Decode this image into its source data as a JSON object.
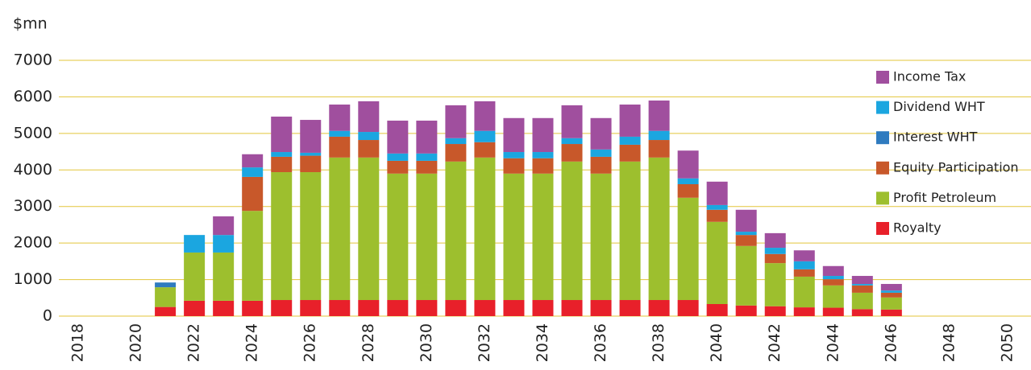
{
  "chart_data": {
    "type": "stacked_bar",
    "y_label": "$mn",
    "categories": [
      "2018",
      null,
      "2020",
      null,
      "2022",
      null,
      "2024",
      null,
      "2026",
      null,
      "2028",
      null,
      "2030",
      null,
      "2032",
      null,
      "2034",
      null,
      "2036",
      null,
      "2038",
      null,
      "2040",
      null,
      "2042",
      null,
      "2044",
      null,
      "2046",
      null,
      "2048",
      null,
      "2050"
    ],
    "series": [
      {
        "name": "Royalty",
        "color": "#e8202a",
        "values": [
          null,
          null,
          null,
          250,
          420,
          420,
          420,
          440,
          440,
          440,
          440,
          440,
          440,
          440,
          440,
          440,
          440,
          440,
          440,
          440,
          440,
          440,
          330,
          290,
          270,
          240,
          230,
          190,
          180,
          null,
          null,
          null,
          null
        ]
      },
      {
        "name": "Profit Petroleum",
        "color": "#9dbf2e",
        "values": [
          null,
          null,
          null,
          540,
          1320,
          1320,
          2460,
          3500,
          3500,
          3900,
          3900,
          3460,
          3460,
          3790,
          3900,
          3460,
          3460,
          3790,
          3460,
          3790,
          3900,
          2800,
          2250,
          1630,
          1180,
          840,
          610,
          450,
          330,
          null,
          null,
          null,
          null
        ]
      },
      {
        "name": "Equity Participation",
        "color": "#c8582a",
        "values": [
          null,
          null,
          null,
          0,
          0,
          0,
          930,
          420,
          450,
          570,
          480,
          350,
          350,
          480,
          420,
          420,
          420,
          480,
          460,
          460,
          480,
          370,
          330,
          300,
          250,
          200,
          170,
          200,
          130,
          null,
          null,
          null,
          null
        ]
      },
      {
        "name": "Interest WHT",
        "color": "#2f7bbf",
        "values": [
          null,
          null,
          null,
          130,
          0,
          0,
          0,
          0,
          0,
          0,
          0,
          0,
          0,
          0,
          0,
          0,
          0,
          0,
          0,
          0,
          0,
          0,
          0,
          0,
          0,
          0,
          0,
          0,
          0,
          null,
          null,
          null,
          null
        ]
      },
      {
        "name": "Dividend WHT",
        "color": "#1ba6e0",
        "values": [
          null,
          null,
          null,
          0,
          480,
          480,
          260,
          130,
          80,
          160,
          220,
          200,
          200,
          160,
          310,
          170,
          170,
          160,
          200,
          220,
          250,
          160,
          130,
          90,
          170,
          220,
          90,
          40,
          60,
          null,
          null,
          null,
          null
        ]
      },
      {
        "name": "Income Tax",
        "color": "#a04f9e",
        "values": [
          null,
          null,
          null,
          0,
          0,
          510,
          360,
          970,
          900,
          720,
          840,
          900,
          900,
          900,
          810,
          930,
          930,
          900,
          860,
          880,
          830,
          760,
          640,
          600,
          400,
          300,
          270,
          220,
          180,
          null,
          null,
          null,
          null
        ]
      }
    ],
    "ylim": [
      0,
      7000
    ],
    "yticks": [
      0,
      1000,
      2000,
      3000,
      4000,
      5000,
      6000,
      7000
    ],
    "grid": true,
    "legend": "right"
  }
}
